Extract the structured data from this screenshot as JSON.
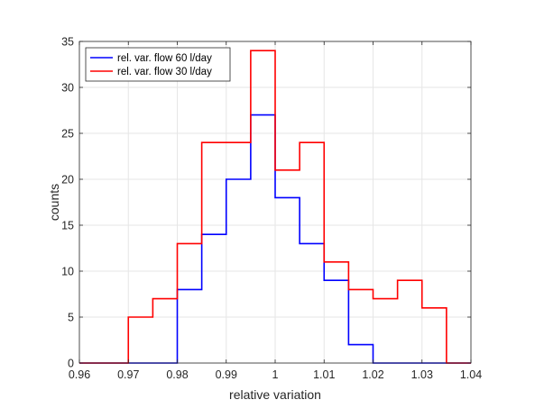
{
  "chart_data": {
    "type": "line",
    "style": "stairs-histogram",
    "xlabel": "relative variation",
    "ylabel": "counts",
    "xlim": [
      0.96,
      1.04
    ],
    "ylim": [
      0,
      35
    ],
    "xticks": [
      0.96,
      0.97,
      0.98,
      0.99,
      1.0,
      1.01,
      1.02,
      1.03,
      1.04
    ],
    "xtick_labels": [
      "0.96",
      "0.97",
      "0.98",
      "0.99",
      "1",
      "1.01",
      "1.02",
      "1.03",
      "1.04"
    ],
    "yticks": [
      0,
      5,
      10,
      15,
      20,
      25,
      30,
      35
    ],
    "ytick_labels": [
      "0",
      "5",
      "10",
      "15",
      "20",
      "25",
      "30",
      "35"
    ],
    "grid": true,
    "legend_position": "top-left",
    "bin_edges": [
      0.96,
      0.965,
      0.97,
      0.975,
      0.98,
      0.985,
      0.99,
      0.995,
      1.0,
      1.005,
      1.01,
      1.015,
      1.02,
      1.025,
      1.03,
      1.035,
      1.04
    ],
    "series": [
      {
        "name": "rel. var. flow 60 l/day",
        "color": "#0000ff",
        "counts": [
          0,
          0,
          0,
          0,
          8,
          14,
          20,
          27,
          18,
          13,
          9,
          2,
          0,
          0,
          0,
          0
        ]
      },
      {
        "name": "rel. var. flow 30 l/day",
        "color": "#ff0000",
        "counts": [
          0,
          0,
          5,
          7,
          13,
          24,
          24,
          34,
          21,
          24,
          11,
          8,
          7,
          9,
          6,
          0
        ]
      }
    ]
  }
}
